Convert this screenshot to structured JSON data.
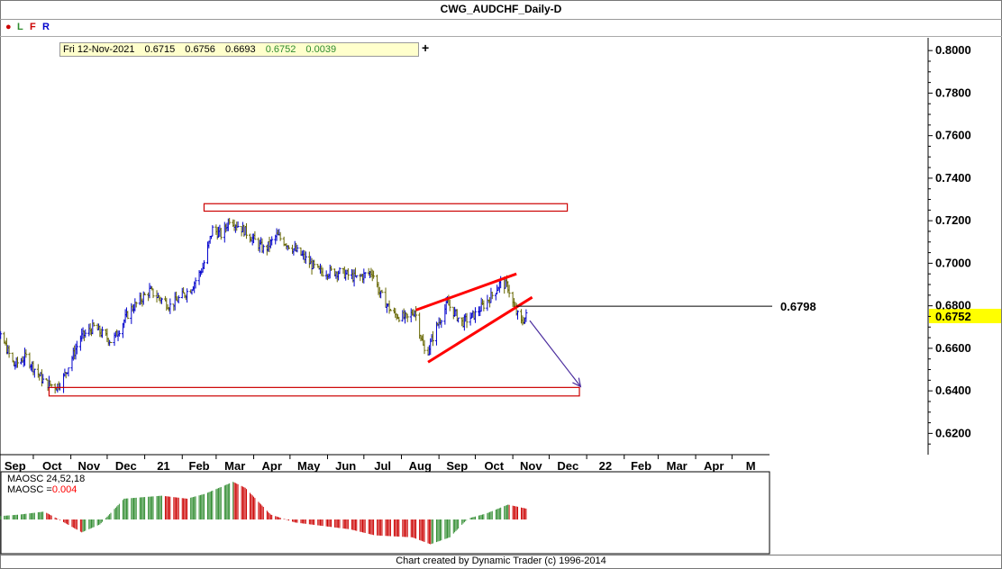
{
  "title": "CWG_AUDCHF_Daily-D",
  "toolbar": {
    "dot_icon": "red-dot-icon",
    "buttons": [
      "L",
      "F",
      "R"
    ],
    "info": {
      "date": "Fri 12-Nov-2021",
      "open": "0.6715",
      "high": "0.6756",
      "low": "0.6693",
      "close": "0.6752",
      "change": "0.0039"
    },
    "plus_label": "+"
  },
  "chart_data": [
    {
      "type": "ohlc",
      "series_color_up": "#0000cc",
      "series_color_down": "#666600",
      "x_tick_labels": [
        "Sep",
        "Oct",
        "Nov",
        "Dec",
        "21",
        "Feb",
        "Mar",
        "Apr",
        "May",
        "Jun",
        "Jul",
        "Aug",
        "Sep",
        "Oct",
        "Nov",
        "Dec",
        "22",
        "Feb",
        "Mar",
        "Apr",
        "M"
      ],
      "y_tick_labels": [
        "0.8000",
        "0.7800",
        "0.7600",
        "0.7400",
        "0.7200",
        "0.7000",
        "0.6800",
        "0.6600",
        "0.6400",
        "0.6200"
      ],
      "ylim": [
        0.61,
        0.806
      ],
      "last_price_label": "0.6752",
      "last_price_color": "#ffff00",
      "level_label": "0.6798",
      "level_value": 0.6798,
      "anchors": [
        {
          "t": "2020-08-20",
          "p": 0.659
        },
        {
          "t": "2020-09-05",
          "p": 0.665
        },
        {
          "t": "2020-09-15",
          "p": 0.652
        },
        {
          "t": "2020-09-25",
          "p": 0.656
        },
        {
          "t": "2020-10-10",
          "p": 0.644
        },
        {
          "t": "2020-10-20",
          "p": 0.642
        },
        {
          "t": "2020-10-25",
          "p": 0.645
        },
        {
          "t": "2020-11-09",
          "p": 0.665
        },
        {
          "t": "2020-11-20",
          "p": 0.67
        },
        {
          "t": "2020-12-05",
          "p": 0.663
        },
        {
          "t": "2020-12-20",
          "p": 0.678
        },
        {
          "t": "2021-01-05",
          "p": 0.687
        },
        {
          "t": "2021-01-22",
          "p": 0.68
        },
        {
          "t": "2021-02-08",
          "p": 0.688
        },
        {
          "t": "2021-02-18",
          "p": 0.698
        },
        {
          "t": "2021-02-26",
          "p": 0.716
        },
        {
          "t": "2021-03-06",
          "p": 0.713
        },
        {
          "t": "2021-03-12",
          "p": 0.721
        },
        {
          "t": "2021-03-25",
          "p": 0.715
        },
        {
          "t": "2021-04-10",
          "p": 0.706
        },
        {
          "t": "2021-04-20",
          "p": 0.713
        },
        {
          "t": "2021-05-10",
          "p": 0.704
        },
        {
          "t": "2021-05-25",
          "p": 0.696
        },
        {
          "t": "2021-06-10",
          "p": 0.696
        },
        {
          "t": "2021-06-25",
          "p": 0.693
        },
        {
          "t": "2021-07-08",
          "p": 0.696
        },
        {
          "t": "2021-07-14",
          "p": 0.686
        },
        {
          "t": "2021-07-25",
          "p": 0.676
        },
        {
          "t": "2021-08-06",
          "p": 0.674
        },
        {
          "t": "2021-08-12",
          "p": 0.678
        },
        {
          "t": "2021-08-21",
          "p": 0.656
        },
        {
          "t": "2021-08-30",
          "p": 0.67
        },
        {
          "t": "2021-09-08",
          "p": 0.681
        },
        {
          "t": "2021-09-20",
          "p": 0.672
        },
        {
          "t": "2021-10-01",
          "p": 0.676
        },
        {
          "t": "2021-10-15",
          "p": 0.685
        },
        {
          "t": "2021-10-22",
          "p": 0.691
        },
        {
          "t": "2021-10-28",
          "p": 0.689
        },
        {
          "t": "2021-11-02",
          "p": 0.679
        },
        {
          "t": "2021-11-08",
          "p": 0.672
        },
        {
          "t": "2021-11-12",
          "p": 0.6752
        }
      ],
      "rectangles": [
        {
          "t0": "2021-02-19",
          "t1": "2021-12-16",
          "p0": 0.7245,
          "p1": 0.728,
          "color": "#cc0000"
        },
        {
          "t0": "2020-10-14",
          "t1": "2021-12-26",
          "p0": 0.6376,
          "p1": 0.6416,
          "color": "#cc0000"
        }
      ],
      "trendlines": [
        {
          "t0": "2021-08-13",
          "p0": 0.678,
          "t1": "2021-11-04",
          "p1": 0.695,
          "color": "#ff0000"
        },
        {
          "t0": "2021-08-23",
          "p0": 0.6535,
          "t1": "2021-11-17",
          "p1": 0.684,
          "color": "#ff0000"
        }
      ],
      "arrow": {
        "t0": "2021-11-15",
        "p0": 0.673,
        "t1": "2021-12-27",
        "p1": 0.642,
        "color": "#4b2d9e"
      }
    },
    {
      "type": "histogram",
      "label_line1": "MAOSC 24,52,18",
      "label_line2_prefix": "MAOSC =",
      "value": "0.004",
      "value_color": "#ff0000",
      "colors": {
        "up": "#2e8b2e",
        "down": "#cc0000"
      },
      "anchors": [
        {
          "t": "2020-08-20",
          "v": 0.2
        },
        {
          "t": "2020-09-20",
          "v": 0.5
        },
        {
          "t": "2020-10-10",
          "v": 0.8
        },
        {
          "t": "2020-10-25",
          "v": -0.2
        },
        {
          "t": "2020-11-10",
          "v": -1.3
        },
        {
          "t": "2020-11-25",
          "v": -0.5
        },
        {
          "t": "2020-12-15",
          "v": 2.1
        },
        {
          "t": "2021-01-15",
          "v": 2.4
        },
        {
          "t": "2021-02-05",
          "v": 2.1
        },
        {
          "t": "2021-02-20",
          "v": 2.6
        },
        {
          "t": "2021-03-15",
          "v": 3.8
        },
        {
          "t": "2021-03-25",
          "v": 3.2
        },
        {
          "t": "2021-04-15",
          "v": 0.5
        },
        {
          "t": "2021-05-05",
          "v": -0.3
        },
        {
          "t": "2021-06-20",
          "v": -1.0
        },
        {
          "t": "2021-07-10",
          "v": -1.6
        },
        {
          "t": "2021-08-10",
          "v": -1.8
        },
        {
          "t": "2021-08-25",
          "v": -2.5
        },
        {
          "t": "2021-09-10",
          "v": -1.8
        },
        {
          "t": "2021-09-25",
          "v": 0.1
        },
        {
          "t": "2021-10-10",
          "v": 0.6
        },
        {
          "t": "2021-10-28",
          "v": 1.5
        },
        {
          "t": "2021-11-12",
          "v": 1.1
        }
      ]
    }
  ],
  "footer": "Chart created by Dynamic Trader  (c) 1996-2014"
}
